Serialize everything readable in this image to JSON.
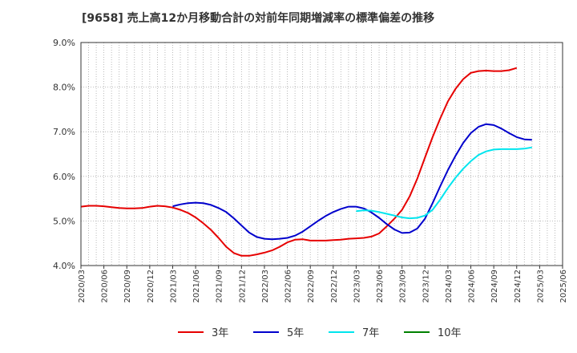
{
  "chart_data": {
    "type": "line",
    "title": "[9658]  売上高12か月移動合計の対前年同期増減率の標準偏差の推移",
    "xlabel": "",
    "ylabel": "",
    "ylim": [
      4.0,
      9.0
    ],
    "yticks": [
      "4.0%",
      "5.0%",
      "6.0%",
      "7.0%",
      "8.0%",
      "9.0%"
    ],
    "ytick_values": [
      4,
      5,
      6,
      7,
      8,
      9
    ],
    "x_start": "2020/03",
    "x_end": "2025/06",
    "xtick_labels": [
      "2020/03",
      "2020/06",
      "2020/09",
      "2020/12",
      "2021/03",
      "2021/06",
      "2021/09",
      "2021/12",
      "2022/03",
      "2022/06",
      "2022/09",
      "2022/12",
      "2023/03",
      "2023/06",
      "2023/09",
      "2023/12",
      "2024/03",
      "2024/06",
      "2024/09",
      "2024/12",
      "2025/03",
      "2025/06"
    ],
    "grid": true,
    "legend_position": "bottom",
    "series": [
      {
        "name": "3年",
        "color": "#e60000",
        "start": "2020/03",
        "values": [
          5.32,
          5.34,
          5.34,
          5.33,
          5.31,
          5.29,
          5.28,
          5.28,
          5.29,
          5.32,
          5.34,
          5.33,
          5.3,
          5.25,
          5.18,
          5.08,
          4.95,
          4.8,
          4.62,
          4.42,
          4.28,
          4.22,
          4.22,
          4.25,
          4.29,
          4.34,
          4.42,
          4.52,
          4.58,
          4.59,
          4.56,
          4.56,
          4.56,
          4.57,
          4.58,
          4.6,
          4.61,
          4.62,
          4.65,
          4.72,
          4.88,
          5.05,
          5.25,
          5.55,
          5.95,
          6.42,
          6.88,
          7.3,
          7.68,
          7.96,
          8.18,
          8.32,
          8.36,
          8.37,
          8.36,
          8.36,
          8.38,
          8.43
        ]
      },
      {
        "name": "5年",
        "color": "#0000cc",
        "start": "2021/03",
        "values": [
          5.33,
          5.37,
          5.4,
          5.41,
          5.4,
          5.36,
          5.29,
          5.2,
          5.06,
          4.9,
          4.74,
          4.64,
          4.6,
          4.59,
          4.6,
          4.62,
          4.67,
          4.76,
          4.88,
          5.0,
          5.11,
          5.2,
          5.27,
          5.32,
          5.32,
          5.28,
          5.19,
          5.07,
          4.93,
          4.81,
          4.73,
          4.74,
          4.83,
          5.05,
          5.4,
          5.78,
          6.14,
          6.46,
          6.75,
          6.97,
          7.11,
          7.17,
          7.15,
          7.07,
          6.97,
          6.88,
          6.83,
          6.82
        ]
      },
      {
        "name": "7年",
        "color": "#00e5ee",
        "start": "2023/03",
        "values": [
          5.22,
          5.24,
          5.23,
          5.2,
          5.16,
          5.12,
          5.08,
          5.06,
          5.07,
          5.12,
          5.25,
          5.48,
          5.74,
          5.97,
          6.17,
          6.34,
          6.48,
          6.56,
          6.6,
          6.61,
          6.61,
          6.61,
          6.62,
          6.65
        ]
      },
      {
        "name": "10年",
        "color": "#008000",
        "start": "2025/03",
        "values": []
      }
    ]
  }
}
